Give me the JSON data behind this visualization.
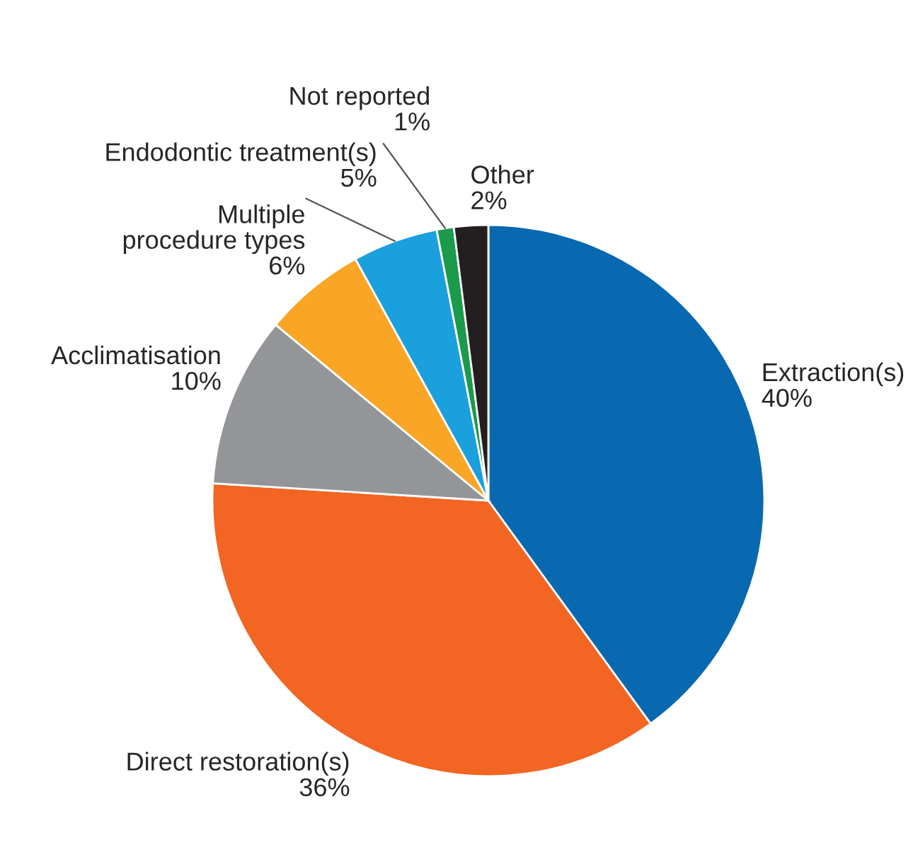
{
  "chart_data": {
    "type": "pie",
    "categories": [
      "Extraction(s)",
      "Direct restoration(s)",
      "Acclimatisation",
      "Multiple\nprocedure types",
      "Endodontic treatment(s)",
      "Not reported",
      "Other"
    ],
    "values": [
      40,
      36,
      10,
      6,
      5,
      1,
      2
    ],
    "colors": [
      "#0868b0",
      "#f26522",
      "#939598",
      "#f9a526",
      "#1aa0dc",
      "#1a9a4a",
      "#231f20"
    ],
    "value_labels": [
      "40%",
      "36%",
      "10%",
      "6%",
      "5%",
      "1%",
      "2%"
    ],
    "legend": false
  }
}
